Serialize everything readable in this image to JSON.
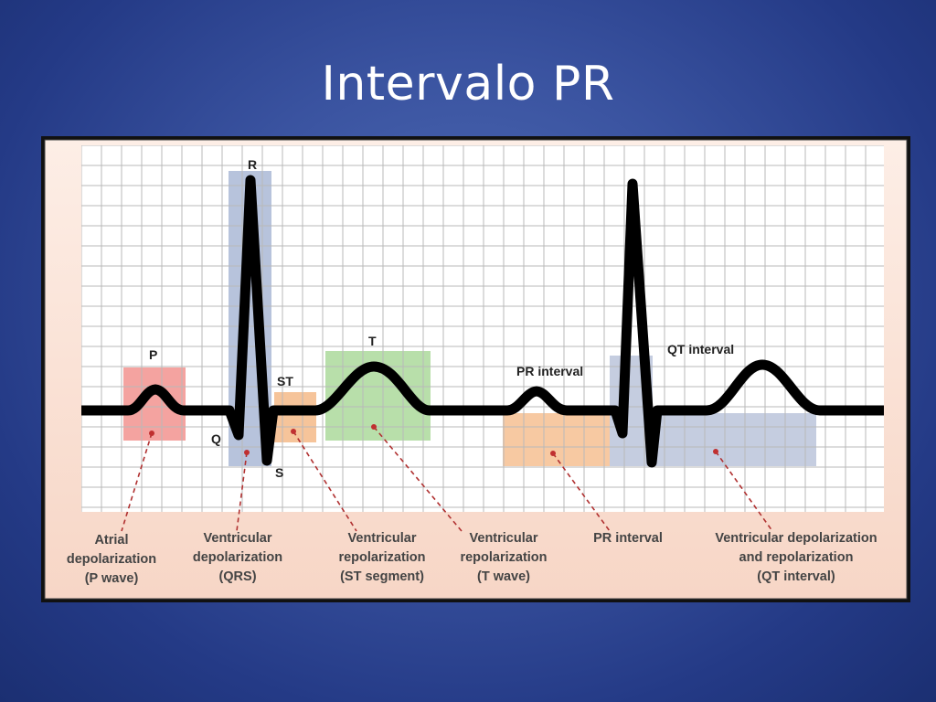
{
  "slide": {
    "title": "Intervalo PR"
  },
  "diagram": {
    "wave_labels": {
      "p": "P",
      "r": "R",
      "q": "Q",
      "s": "S",
      "st": "ST",
      "t": "T",
      "pr": "PR interval",
      "qt": "QT interval"
    },
    "captions": [
      {
        "lines": [
          "Atrial",
          "depolarization",
          "(P wave)"
        ]
      },
      {
        "lines": [
          "Ventricular",
          "depolarization",
          "(QRS)"
        ]
      },
      {
        "lines": [
          "Ventricular",
          "repolarization",
          "(ST segment)"
        ]
      },
      {
        "lines": [
          "Ventricular",
          "repolarization",
          "(T wave)"
        ]
      },
      {
        "lines": [
          "PR interval"
        ]
      },
      {
        "lines": [
          "Ventricular depolarization",
          "and repolarization",
          "(QT interval)"
        ]
      }
    ],
    "colors": {
      "background_panel": "#fbe3d6",
      "grid_line": "#b9b9b9",
      "trace": "#000000",
      "p_wave_box": "#f4a3a0",
      "qrs_box": "#b7c3dc",
      "st_box": "#f6c49a",
      "t_wave_box": "#b8dfaa",
      "pr_interval_box": "#f7c9a2",
      "qt_interval_box": "#c5cde0",
      "pointer": "#b03030"
    }
  }
}
